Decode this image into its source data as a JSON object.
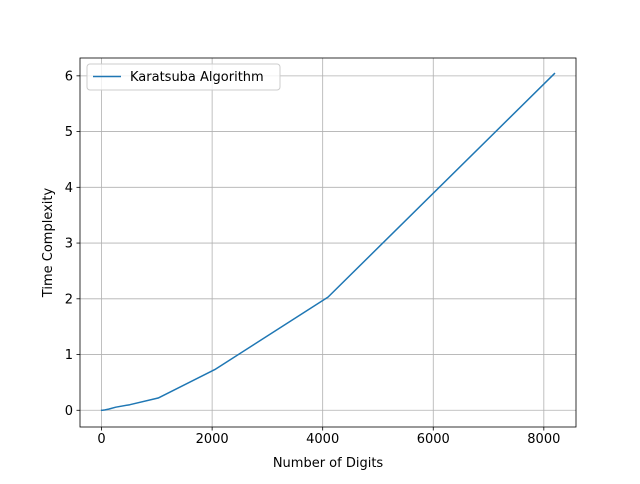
{
  "chart_data": {
    "type": "line",
    "title": "",
    "xlabel": "Number of Digits",
    "ylabel": "Time Complexity",
    "xlim": [
      -390,
      8582
    ],
    "ylim": [
      -0.3,
      6.32
    ],
    "x_ticks": [
      0,
      2000,
      4000,
      6000,
      8000
    ],
    "y_ticks": [
      0,
      1,
      2,
      3,
      4,
      5,
      6
    ],
    "grid": true,
    "legend_position": "top-left",
    "series": [
      {
        "name": "Karatsuba Algorithm",
        "color": "#1f77b4",
        "x": [
          2,
          4,
          8,
          16,
          32,
          64,
          128,
          256,
          512,
          1024,
          2048,
          4096,
          8192
        ],
        "y": [
          0.0,
          0.0001,
          0.0003,
          0.0009,
          0.0028,
          0.0078,
          0.0211,
          0.0556,
          0.1,
          0.22,
          0.73,
          2.03,
          6.04
        ]
      }
    ]
  }
}
